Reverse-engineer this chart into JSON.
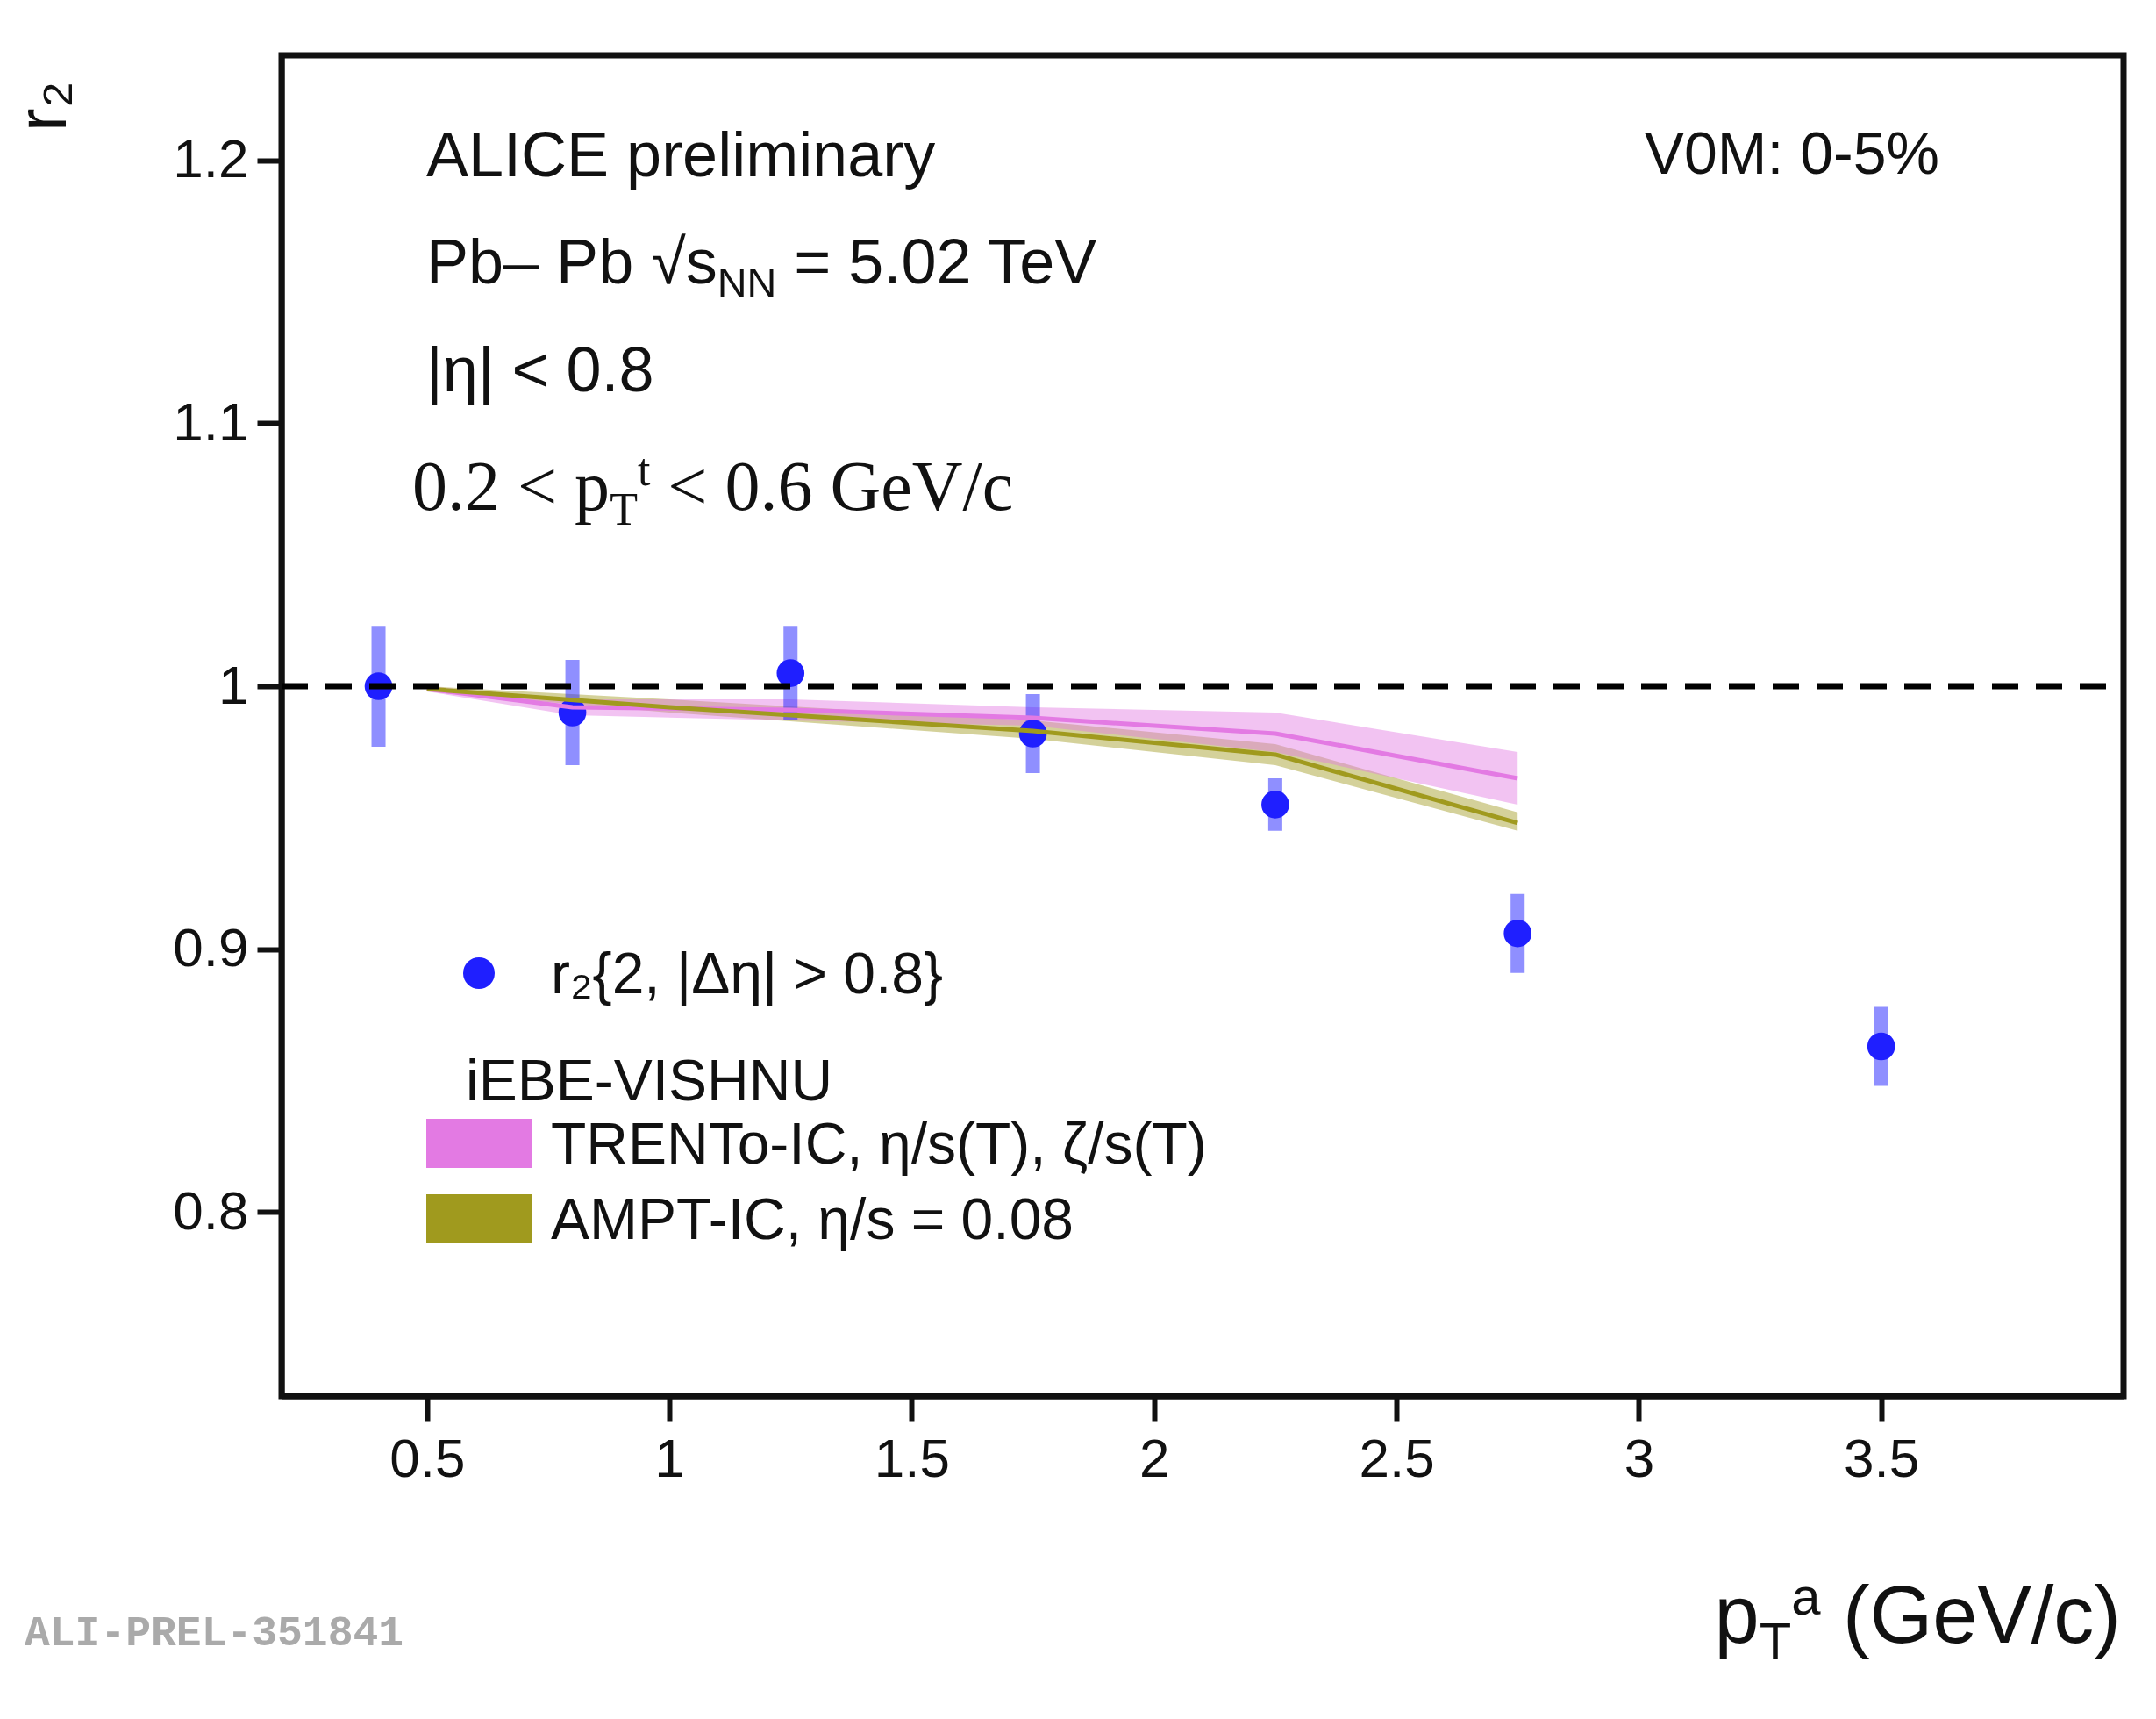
{
  "chart_data": {
    "type": "scatter",
    "xlabel": "p$_{T}$$^{a}$ (GeV/c)",
    "ylabel": "r₂",
    "legend_title": "iEBE-VISHNU",
    "legend": "bottom left",
    "xlim": [
      0.2,
      4.0
    ],
    "xticks": [
      0.5,
      1,
      1.5,
      2,
      2.5,
      3,
      3.5
    ],
    "ylim": [
      0.73,
      1.24
    ],
    "yticks": [
      0.8,
      0.9,
      1,
      1.1,
      1.2
    ],
    "grid": false,
    "annotations": [
      "ALICE preliminary",
      "V0M: 0-5%",
      "Pb– Pb √s$_{NN}$ = 5.02 TeV",
      "|η| < 0.8",
      "0.2 < p$_{T}$$^{t}$ < 0.6 GeV/c",
      "ALI-PREL-351841"
    ],
    "ref_lines": [
      {
        "axis": "y",
        "value": 1,
        "color": "#000000",
        "line_style": "dashed"
      }
    ],
    "series": [
      {
        "name": "TRENTo-IC, η/s(T), ζ/s(T)",
        "type": "line",
        "color": "#e37ae3",
        "x": [
          0.5,
          0.8,
          1.25,
          1.75,
          2.25,
          2.75
        ],
        "values": [
          0.999,
          0.992,
          0.991,
          0.988,
          0.982,
          0.965
        ],
        "lower": [
          0.998,
          0.989,
          0.987,
          0.985,
          0.975,
          0.955
        ],
        "upper": [
          1.0,
          0.995,
          0.995,
          0.992,
          0.99,
          0.975
        ]
      },
      {
        "name": "AMPT-IC, η/s = 0.08",
        "type": "line",
        "color": "#a09a1e",
        "x": [
          0.5,
          1.0,
          1.75,
          2.25,
          2.75
        ],
        "values": [
          0.999,
          0.992,
          0.983,
          0.974,
          0.948
        ],
        "lower": [
          0.998,
          0.99,
          0.98,
          0.97,
          0.945
        ],
        "upper": [
          1.0,
          0.995,
          0.987,
          0.978,
          0.952
        ]
      },
      {
        "name": "r₂{2, |Δη| > 0.8}",
        "color": "#1f1fff",
        "marker": "circle",
        "x": [
          0.4,
          0.8,
          1.25,
          1.75,
          2.25,
          2.75,
          3.5
        ],
        "values": [
          1.0,
          0.99,
          1.005,
          0.982,
          0.955,
          0.906,
          0.863
        ],
        "errors": [
          0.023,
          0.02,
          0.018,
          0.015,
          0.01,
          0.015,
          0.015
        ]
      }
    ]
  }
}
